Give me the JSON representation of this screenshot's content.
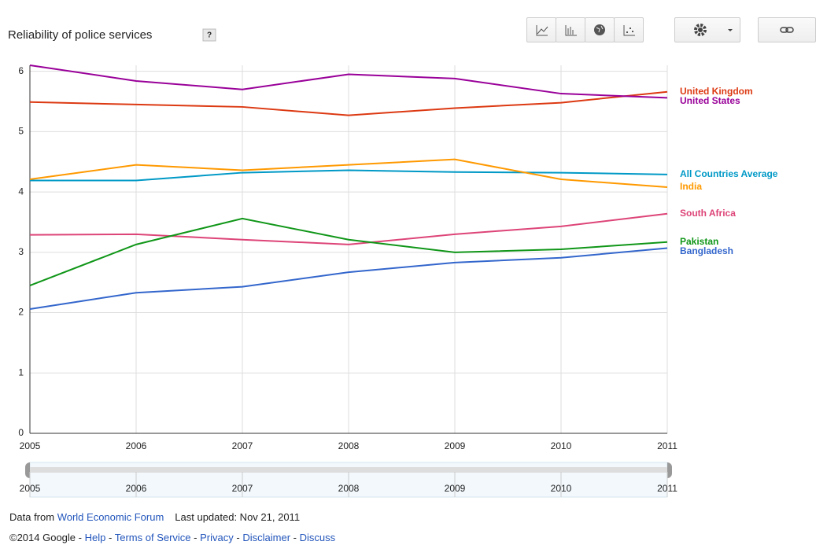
{
  "chart_data": {
    "type": "line",
    "title": "Reliability of police services",
    "help_icon": "?",
    "x": [
      2005,
      2006,
      2007,
      2008,
      2009,
      2010,
      2011
    ],
    "xlim": [
      2005,
      2011
    ],
    "xticks": [
      2005,
      2006,
      2007,
      2008,
      2009,
      2010,
      2011
    ],
    "ylim": [
      0,
      6.1
    ],
    "yticks": [
      0,
      1,
      2,
      3,
      4,
      5,
      6
    ],
    "grid": true,
    "series": [
      {
        "name": "United Kingdom",
        "color": "#dc3912",
        "values": [
          5.49,
          5.45,
          5.41,
          5.27,
          5.39,
          5.48,
          5.66
        ]
      },
      {
        "name": "United States",
        "color": "#990099",
        "values": [
          6.1,
          5.84,
          5.7,
          5.95,
          5.88,
          5.63,
          5.56
        ]
      },
      {
        "name": "All Countries Average",
        "color": "#0099c6",
        "values": [
          4.19,
          4.19,
          4.32,
          4.36,
          4.33,
          4.32,
          4.29
        ]
      },
      {
        "name": "India",
        "color": "#ff9900",
        "values": [
          4.21,
          4.45,
          4.36,
          4.45,
          4.54,
          4.21,
          4.08
        ]
      },
      {
        "name": "South Africa",
        "color": "#dd4477",
        "values": [
          3.29,
          3.3,
          3.21,
          3.13,
          3.3,
          3.43,
          3.64
        ]
      },
      {
        "name": "Pakistan",
        "color": "#109618",
        "values": [
          2.45,
          3.13,
          3.56,
          3.21,
          3.0,
          3.05,
          3.17
        ]
      },
      {
        "name": "Bangladesh",
        "color": "#3366cc",
        "values": [
          2.06,
          2.33,
          2.43,
          2.67,
          2.83,
          2.91,
          3.07
        ]
      }
    ]
  },
  "footer": {
    "source_prefix": "Data from",
    "source_link": "World Economic Forum",
    "updated": "Last updated: Nov 21, 2011",
    "copyright": "©2014 Google",
    "links": [
      "Help",
      "Terms of Service",
      "Privacy",
      "Disclaimer",
      "Discuss"
    ],
    "separator": "-"
  }
}
